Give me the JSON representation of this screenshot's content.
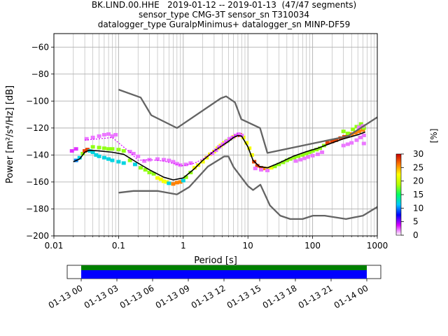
{
  "header": {
    "line1": "BK.LIND.00.HHE   2019-01-12 -- 2019-01-13  (47/47 segments)",
    "line2": "sensor_type CMG-3T sensor_sn T310034",
    "line3": "datalogger_type GuralpMinimus+ datalogger_sn MINP-DF59"
  },
  "chart_data": [
    {
      "type": "heatmap",
      "title": "BK.LIND.00.HHE   2019-01-12 -- 2019-01-13  (47/47 segments)",
      "xlabel": "Period [s]",
      "ylabel": "Power [m²/s⁴/Hz] [dB]",
      "xscale": "log",
      "xlim": [
        0.01,
        1000
      ],
      "ylim": [
        -200,
        -50
      ],
      "x_ticks": [
        0.01,
        0.1,
        1,
        10,
        100,
        1000
      ],
      "x_tick_labels": [
        "0.01",
        "0.1",
        "1",
        "10",
        "100",
        "1000"
      ],
      "y_ticks": [
        -200,
        -180,
        -160,
        -140,
        -120,
        -100,
        -80,
        -60
      ],
      "y_tick_labels": [
        "−200",
        "−180",
        "−160",
        "−140",
        "−120",
        "−100",
        "−80",
        "−60"
      ],
      "grid": true,
      "colorbar": {
        "label": "[%]",
        "min": 0,
        "max": 30,
        "ticks": [
          0,
          5,
          10,
          15,
          20,
          25,
          30
        ],
        "tick_labels": [
          "0",
          "5",
          "10",
          "15",
          "20",
          "25",
          "30"
        ],
        "colors": [
          "#ffffff",
          "#d900ff",
          "#0000ff",
          "#00c8ff",
          "#00ff64",
          "#b4ff00",
          "#ffff00",
          "#ff7800",
          "#c80000"
        ]
      },
      "series": [
        {
          "name": "NHNM",
          "color": "#646464",
          "points": [
            [
              0.1,
              -91.5
            ],
            [
              0.22,
              -97.4
            ],
            [
              0.32,
              -110.5
            ],
            [
              0.8,
              -120
            ],
            [
              3.8,
              -98
            ],
            [
              4.6,
              -96.5
            ],
            [
              6.3,
              -101
            ],
            [
              7.9,
              -113.5
            ],
            [
              15.4,
              -120
            ],
            [
              20,
              -138.5
            ],
            [
              354.8,
              -126
            ],
            [
              1000,
              -112
            ]
          ]
        },
        {
          "name": "NLNM",
          "color": "#646464",
          "points": [
            [
              0.1,
              -168
            ],
            [
              0.17,
              -166.7
            ],
            [
              0.4,
              -166.7
            ],
            [
              0.8,
              -169.2
            ],
            [
              1.24,
              -163.7
            ],
            [
              2.4,
              -148.6
            ],
            [
              4.3,
              -141.1
            ],
            [
              5,
              -141.1
            ],
            [
              6,
              -149
            ],
            [
              10,
              -163
            ],
            [
              12,
              -166
            ],
            [
              15.6,
              -162
            ],
            [
              21.9,
              -177.5
            ],
            [
              31.6,
              -185
            ],
            [
              45,
              -187.5
            ],
            [
              70,
              -187.5
            ],
            [
              101,
              -185
            ],
            [
              154,
              -185
            ],
            [
              328,
              -187.5
            ],
            [
              600,
              -185
            ],
            [
              1000,
              -178.5
            ]
          ]
        },
        {
          "name": "mode",
          "color": "#000000",
          "points": [
            [
              0.02,
              -145
            ],
            [
              0.025,
              -143
            ],
            [
              0.03,
              -138
            ],
            [
              0.035,
              -136.5
            ],
            [
              0.05,
              -137
            ],
            [
              0.08,
              -138
            ],
            [
              0.12,
              -139.5
            ],
            [
              0.2,
              -146
            ],
            [
              0.3,
              -151
            ],
            [
              0.5,
              -156.5
            ],
            [
              0.7,
              -158.5
            ],
            [
              1,
              -157
            ],
            [
              1.5,
              -150
            ],
            [
              2,
              -144
            ],
            [
              3,
              -137
            ],
            [
              4,
              -133
            ],
            [
              5,
              -130
            ],
            [
              6,
              -127
            ],
            [
              7,
              -125.5
            ],
            [
              8,
              -126
            ],
            [
              10,
              -134
            ],
            [
              12,
              -144
            ],
            [
              15,
              -148.5
            ],
            [
              20,
              -149.5
            ],
            [
              30,
              -146
            ],
            [
              50,
              -141
            ],
            [
              80,
              -137.5
            ],
            [
              120,
              -135
            ],
            [
              200,
              -131
            ],
            [
              300,
              -128
            ],
            [
              500,
              -125
            ],
            [
              650,
              -123
            ]
          ]
        },
        {
          "name": "outlier",
          "color": "#d900ff",
          "points": [
            [
              0.03,
              -129
            ],
            [
              0.05,
              -128
            ],
            [
              0.08,
              -127
            ],
            [
              0.1,
              -131
            ],
            [
              0.15,
              -138
            ],
            [
              0.2,
              -144
            ],
            [
              0.3,
              -143.5
            ],
            [
              0.5,
              -144.5
            ],
            [
              0.8,
              -147
            ],
            [
              1,
              -148
            ],
            [
              1.5,
              -146
            ],
            [
              2,
              -143
            ],
            [
              3,
              -137
            ],
            [
              5,
              -129
            ],
            [
              6,
              -126
            ],
            [
              7,
              -124
            ]
          ]
        }
      ],
      "density_cells": [
        [
          0.019,
          -137,
          3
        ],
        [
          0.022,
          -135.5,
          3
        ],
        [
          0.032,
          -128,
          2
        ],
        [
          0.04,
          -127,
          2
        ],
        [
          0.05,
          -126,
          2
        ],
        [
          0.06,
          -125,
          2
        ],
        [
          0.07,
          -124.5,
          2
        ],
        [
          0.08,
          -126,
          2
        ],
        [
          0.09,
          -125,
          2
        ],
        [
          0.022,
          -144,
          10
        ],
        [
          0.025,
          -142,
          12
        ],
        [
          0.028,
          -139,
          18
        ],
        [
          0.03,
          -137,
          28
        ],
        [
          0.033,
          -136,
          28
        ],
        [
          0.036,
          -137,
          12
        ],
        [
          0.04,
          -138,
          12
        ],
        [
          0.045,
          -140,
          12
        ],
        [
          0.05,
          -141,
          12
        ],
        [
          0.06,
          -142,
          12
        ],
        [
          0.07,
          -143,
          12
        ],
        [
          0.04,
          -134,
          18
        ],
        [
          0.05,
          -134.5,
          18
        ],
        [
          0.06,
          -135,
          18
        ],
        [
          0.07,
          -135.5,
          18
        ],
        [
          0.08,
          -135.5,
          18
        ],
        [
          0.1,
          -136,
          18
        ],
        [
          0.12,
          -137,
          18
        ],
        [
          0.08,
          -144,
          12
        ],
        [
          0.1,
          -145,
          12
        ],
        [
          0.12,
          -146,
          12
        ],
        [
          0.15,
          -144,
          18
        ],
        [
          0.18,
          -147,
          12
        ],
        [
          0.22,
          -149.5,
          18
        ],
        [
          0.26,
          -151,
          18
        ],
        [
          0.3,
          -153,
          18
        ],
        [
          0.35,
          -154,
          18
        ],
        [
          0.15,
          -137.5,
          2
        ],
        [
          0.17,
          -139,
          2
        ],
        [
          0.2,
          -141,
          2
        ],
        [
          0.25,
          -144.5,
          2
        ],
        [
          0.3,
          -143.5,
          2
        ],
        [
          0.4,
          -143,
          2
        ],
        [
          0.5,
          -143.5,
          2
        ],
        [
          0.6,
          -144,
          2
        ],
        [
          0.7,
          -145,
          2
        ],
        [
          0.8,
          -146.5,
          2
        ],
        [
          0.9,
          -147.5,
          2
        ],
        [
          1.1,
          -147,
          2
        ],
        [
          1.3,
          -146,
          2
        ],
        [
          0.4,
          -157,
          22
        ],
        [
          0.45,
          -158,
          22
        ],
        [
          0.5,
          -159.5,
          22
        ],
        [
          0.55,
          -160,
          22
        ],
        [
          0.6,
          -161,
          12
        ],
        [
          0.7,
          -161.5,
          26
        ],
        [
          0.8,
          -160.5,
          26
        ],
        [
          0.9,
          -160,
          26
        ],
        [
          1,
          -159,
          12
        ],
        [
          1.1,
          -156.5,
          18
        ],
        [
          1.3,
          -153,
          18
        ],
        [
          1.5,
          -149.5,
          22
        ],
        [
          1.7,
          -147.5,
          22
        ],
        [
          2,
          -145,
          22
        ],
        [
          2.3,
          -142,
          22
        ],
        [
          2.6,
          -139.5,
          22
        ],
        [
          3,
          -137.5,
          22
        ],
        [
          3.4,
          -135,
          22
        ],
        [
          3.8,
          -133,
          22
        ],
        [
          4.3,
          -131,
          22
        ],
        [
          4.8,
          -129.5,
          18
        ],
        [
          5.3,
          -128,
          18
        ],
        [
          6,
          -126.5,
          22
        ],
        [
          6.8,
          -125.5,
          28
        ],
        [
          7.5,
          -125,
          28
        ],
        [
          8.5,
          -127,
          22
        ],
        [
          9.5,
          -131,
          22
        ],
        [
          10.5,
          -135,
          22
        ],
        [
          11.5,
          -140,
          22
        ],
        [
          2.8,
          -139,
          2
        ],
        [
          3.2,
          -136.5,
          2
        ],
        [
          3.6,
          -134,
          2
        ],
        [
          4.1,
          -132,
          2
        ],
        [
          4.6,
          -130,
          2
        ],
        [
          5.2,
          -128,
          2
        ],
        [
          5.8,
          -127,
          2
        ],
        [
          6.5,
          -125.5,
          2
        ],
        [
          7.2,
          -124.5,
          2
        ],
        [
          8,
          -125.5,
          2
        ],
        [
          12.5,
          -145,
          28
        ],
        [
          14,
          -148,
          28
        ],
        [
          16,
          -149.5,
          28
        ],
        [
          18,
          -150,
          26
        ],
        [
          20,
          -150,
          22
        ],
        [
          23,
          -149.5,
          22
        ],
        [
          26,
          -148.5,
          18
        ],
        [
          30,
          -147,
          18
        ],
        [
          35,
          -145.5,
          18
        ],
        [
          40,
          -144,
          18
        ],
        [
          45,
          -143,
          18
        ],
        [
          52,
          -142,
          18
        ],
        [
          60,
          -141,
          18
        ],
        [
          70,
          -140,
          18
        ],
        [
          80,
          -139,
          18
        ],
        [
          90,
          -138,
          18
        ],
        [
          100,
          -137,
          18
        ],
        [
          115,
          -136,
          18
        ],
        [
          130,
          -135,
          18
        ],
        [
          150,
          -133,
          18
        ],
        [
          13,
          -150,
          2
        ],
        [
          16,
          -151,
          2
        ],
        [
          20,
          -151.5,
          2
        ],
        [
          55,
          -144.5,
          2
        ],
        [
          65,
          -143.5,
          2
        ],
        [
          75,
          -142.5,
          2
        ],
        [
          85,
          -141.5,
          2
        ],
        [
          100,
          -140.5,
          2
        ],
        [
          120,
          -139.5,
          2
        ],
        [
          140,
          -138,
          2
        ],
        [
          170,
          -131,
          28
        ],
        [
          200,
          -130,
          28
        ],
        [
          230,
          -129,
          28
        ],
        [
          270,
          -127.5,
          28
        ],
        [
          310,
          -126.5,
          28
        ],
        [
          350,
          -125.5,
          28
        ],
        [
          400,
          -124.5,
          26
        ],
        [
          460,
          -123.5,
          26
        ],
        [
          520,
          -122.5,
          26
        ],
        [
          600,
          -121.5,
          26
        ],
        [
          300,
          -122.5,
          18
        ],
        [
          350,
          -124,
          18
        ],
        [
          420,
          -121,
          18
        ],
        [
          480,
          -119,
          18
        ],
        [
          560,
          -117,
          18
        ],
        [
          620,
          -120,
          18
        ],
        [
          300,
          -133,
          2
        ],
        [
          350,
          -132,
          2
        ],
        [
          400,
          -131,
          2
        ],
        [
          480,
          -129,
          2
        ],
        [
          550,
          -127,
          2
        ],
        [
          620,
          -125.5,
          2
        ],
        [
          520,
          -119.5,
          2
        ],
        [
          600,
          -118.5,
          2
        ],
        [
          620,
          -131.5,
          2
        ]
      ]
    },
    {
      "type": "timeline",
      "x_ticks": [
        "01-13 00",
        "01-13 03",
        "01-13 06",
        "01-13 09",
        "01-13 12",
        "01-13 15",
        "01-13 18",
        "01-13 21",
        "01-14 00"
      ],
      "coverage": [
        {
          "color": "#008000",
          "start_hour": 0,
          "end_hour": 24
        },
        {
          "color": "#0000ff",
          "start_hour": 0,
          "end_hour": 24
        }
      ]
    }
  ]
}
